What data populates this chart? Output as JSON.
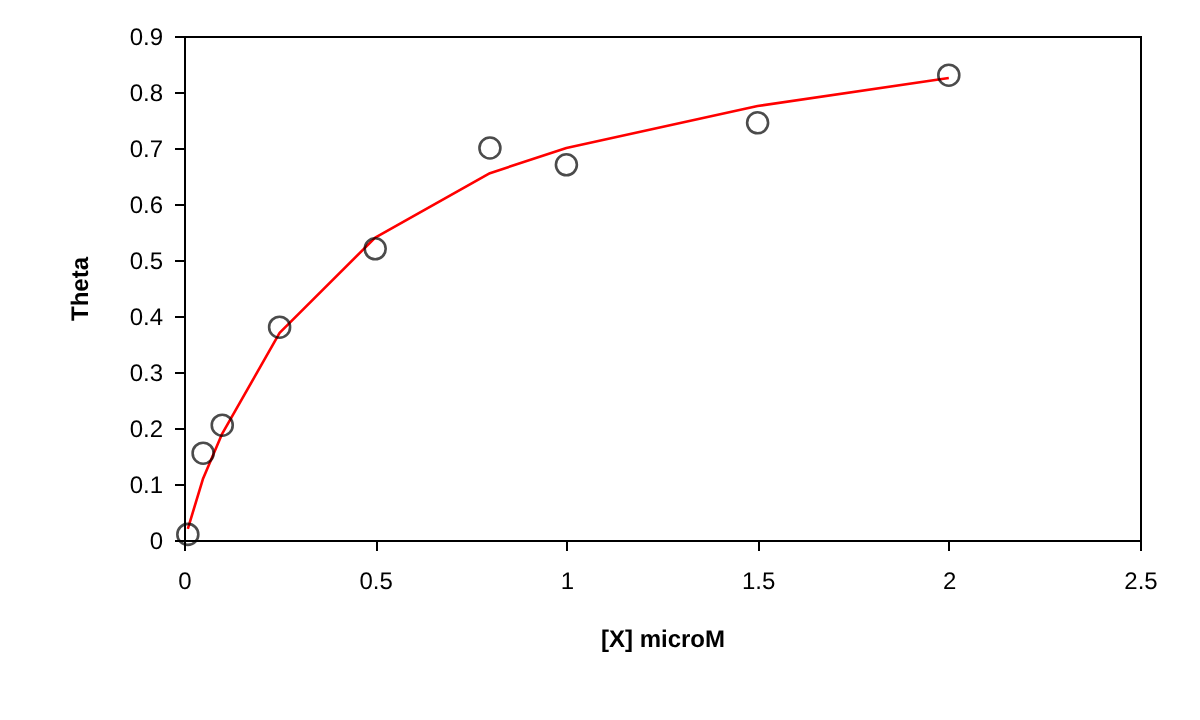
{
  "chart_data": {
    "type": "scatter",
    "xlabel": "[X] microM",
    "ylabel": "Theta",
    "xlim": [
      0,
      2.5
    ],
    "xticks": [
      0,
      0.5,
      1,
      1.5,
      2,
      2.5
    ],
    "ylim": [
      0,
      0.9
    ],
    "yticks": [
      0,
      0.1,
      0.2,
      0.3,
      0.4,
      0.5,
      0.6,
      0.7,
      0.8,
      0.9
    ],
    "grid": false,
    "series": [
      {
        "color": "#000000",
        "marker": "circle",
        "x": [
          0.01,
          0.05,
          0.1,
          0.25,
          0.5,
          0.8,
          1.0,
          1.5,
          2.0
        ],
        "values": [
          0.01,
          0.155,
          0.205,
          0.38,
          0.52,
          0.7,
          0.67,
          0.745,
          0.83
        ]
      },
      {
        "type": "line",
        "color": "#ff0000",
        "marker": "none",
        "x": [
          0.01,
          0.05,
          0.1,
          0.25,
          0.5,
          0.8,
          1.0,
          1.5,
          2.0
        ],
        "values": [
          0.02,
          0.11,
          0.19,
          0.37,
          0.54,
          0.655,
          0.7,
          0.775,
          0.825
        ]
      }
    ]
  }
}
